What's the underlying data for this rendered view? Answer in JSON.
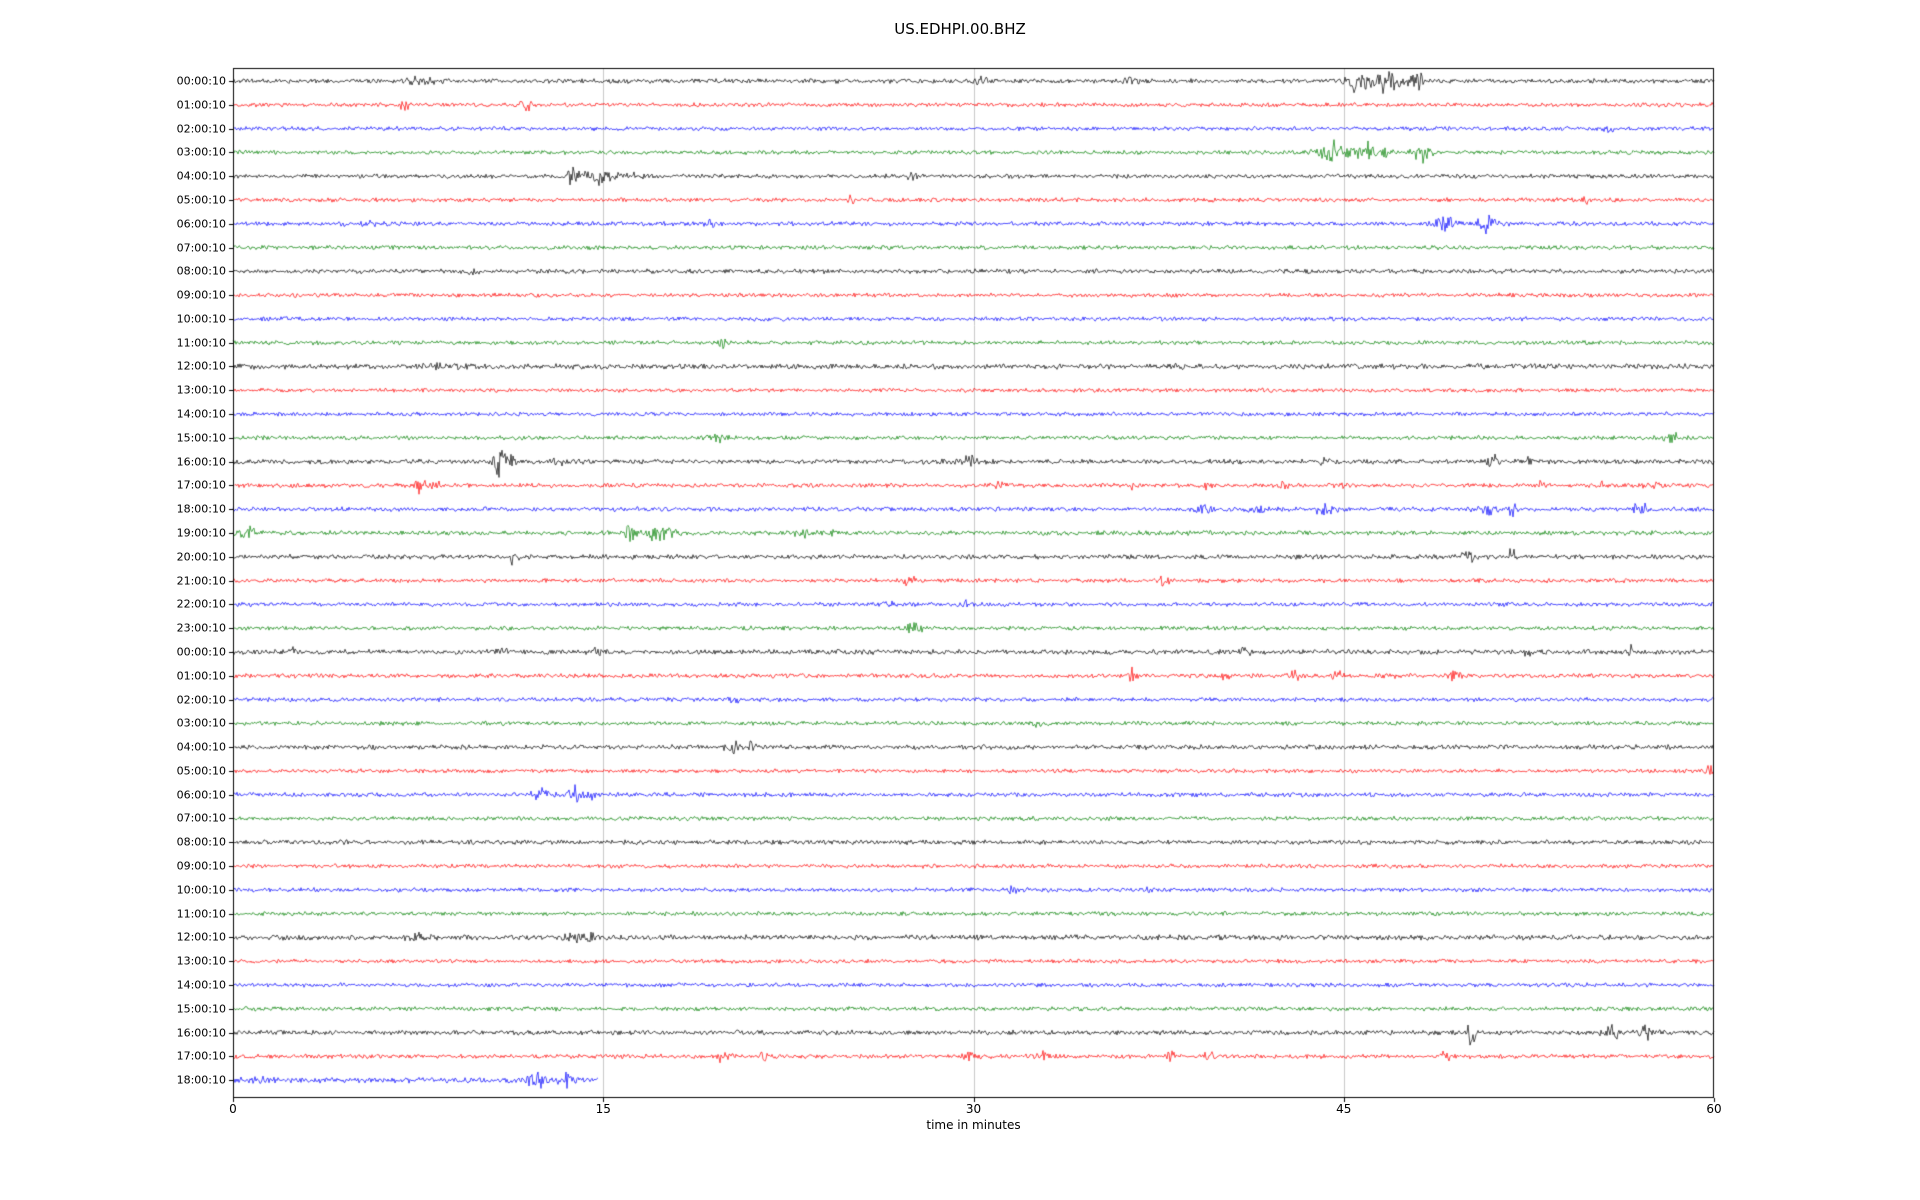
{
  "window": {
    "title": "US.EDHPI.00.BHZ"
  },
  "chart_data": {
    "type": "line",
    "subtype": "helicorder-dayplot",
    "title": "US.EDHPI.00.BHZ",
    "xlabel": "time in minutes",
    "xlim": [
      0,
      60
    ],
    "xticks": [
      0,
      15,
      30,
      45,
      60
    ],
    "grid_x": [
      15,
      30,
      45
    ],
    "grid_color": "#c8c8c8",
    "frame_color": "#000000",
    "colors": {
      "k": "#000000",
      "r": "#ff0000",
      "b": "#0000ff",
      "g": "#008000"
    },
    "color_cycle": [
      "k",
      "r",
      "b",
      "g"
    ],
    "rows": [
      {
        "label": "00:00:10",
        "color": "k",
        "extent": 60,
        "noise": 1.2,
        "events": [
          [
            7.6,
            1.2,
            2
          ],
          [
            30.3,
            0.6,
            1.5
          ],
          [
            36.4,
            0.5,
            1.2
          ],
          [
            45.5,
            1.0,
            4
          ],
          [
            46.8,
            1.2,
            5
          ],
          [
            48.0,
            0.7,
            3
          ]
        ]
      },
      {
        "label": "01:00:10",
        "color": "r",
        "extent": 60,
        "noise": 1.1,
        "events": [
          [
            6.9,
            0.35,
            4
          ],
          [
            11.9,
            0.45,
            3.5
          ]
        ]
      },
      {
        "label": "02:00:10",
        "color": "b",
        "extent": 60,
        "noise": 1.1,
        "events": [
          [
            55.7,
            0.5,
            1.5
          ]
        ]
      },
      {
        "label": "03:00:10",
        "color": "g",
        "extent": 60,
        "noise": 1.1,
        "events": [
          [
            44.5,
            1.0,
            5
          ],
          [
            46.0,
            1.3,
            4
          ],
          [
            48.3,
            0.9,
            4.5
          ]
        ]
      },
      {
        "label": "04:00:10",
        "color": "k",
        "extent": 60,
        "noise": 1.15,
        "events": [
          [
            13.7,
            0.5,
            6
          ],
          [
            14.8,
            1.2,
            3
          ],
          [
            16.0,
            0.9,
            2
          ],
          [
            27.5,
            0.5,
            1.5
          ]
        ]
      },
      {
        "label": "05:00:10",
        "color": "r",
        "extent": 60,
        "noise": 1.1,
        "events": [
          [
            25.0,
            0.5,
            2.5
          ],
          [
            54.8,
            0.4,
            2
          ]
        ]
      },
      {
        "label": "06:00:10",
        "color": "b",
        "extent": 60,
        "noise": 1.15,
        "events": [
          [
            6.0,
            2.0,
            0.8
          ],
          [
            19.3,
            0.35,
            3
          ],
          [
            49.0,
            0.9,
            3.5
          ],
          [
            50.8,
            0.7,
            5
          ]
        ]
      },
      {
        "label": "07:00:10",
        "color": "g",
        "extent": 60,
        "noise": 1.1,
        "events": []
      },
      {
        "label": "08:00:10",
        "color": "k",
        "extent": 60,
        "noise": 1.2,
        "events": [
          [
            9.7,
            0.5,
            1
          ]
        ]
      },
      {
        "label": "09:00:10",
        "color": "r",
        "extent": 60,
        "noise": 1.1,
        "events": []
      },
      {
        "label": "10:00:10",
        "color": "b",
        "extent": 60,
        "noise": 1.1,
        "events": []
      },
      {
        "label": "11:00:10",
        "color": "g",
        "extent": 60,
        "noise": 1.1,
        "events": [
          [
            19.8,
            0.3,
            2.5
          ]
        ]
      },
      {
        "label": "12:00:10",
        "color": "k",
        "extent": 60,
        "noise": 1.4,
        "events": [
          [
            8.5,
            1.5,
            0.6
          ]
        ]
      },
      {
        "label": "13:00:10",
        "color": "r",
        "extent": 60,
        "noise": 1.05,
        "events": []
      },
      {
        "label": "14:00:10",
        "color": "b",
        "extent": 60,
        "noise": 1.05,
        "events": []
      },
      {
        "label": "15:00:10",
        "color": "g",
        "extent": 60,
        "noise": 1.1,
        "events": [
          [
            19.5,
            0.9,
            2.5
          ],
          [
            58.3,
            0.7,
            2
          ]
        ]
      },
      {
        "label": "16:00:10",
        "color": "k",
        "extent": 60,
        "noise": 1.25,
        "events": [
          [
            10.8,
            0.45,
            7
          ],
          [
            11.3,
            0.3,
            4
          ],
          [
            13.2,
            0.4,
            2
          ],
          [
            29.8,
            0.9,
            2.5
          ],
          [
            44.2,
            0.4,
            2
          ],
          [
            51.0,
            0.4,
            3
          ],
          [
            52.5,
            0.3,
            1.5
          ]
        ]
      },
      {
        "label": "17:00:10",
        "color": "r",
        "extent": 60,
        "noise": 1.15,
        "events": [
          [
            7.6,
            0.5,
            4
          ],
          [
            8.2,
            0.3,
            3
          ],
          [
            31.0,
            0.5,
            1.5
          ],
          [
            36.5,
            0.4,
            1.5
          ],
          [
            39.5,
            0.5,
            1.8
          ],
          [
            42.5,
            0.5,
            1.5
          ],
          [
            45.0,
            0.4,
            1.5
          ],
          [
            53.0,
            0.4,
            1.5
          ],
          [
            55.5,
            0.4,
            1.8
          ],
          [
            57.5,
            0.5,
            1.5
          ]
        ]
      },
      {
        "label": "18:00:10",
        "color": "b",
        "extent": 60,
        "noise": 1.2,
        "events": [
          [
            39.2,
            0.9,
            2
          ],
          [
            41.5,
            0.7,
            2.5
          ],
          [
            44.3,
            0.9,
            2.5
          ],
          [
            50.8,
            0.7,
            4
          ],
          [
            51.8,
            0.5,
            3
          ],
          [
            57.0,
            0.6,
            2.5
          ]
        ]
      },
      {
        "label": "19:00:10",
        "color": "g",
        "extent": 60,
        "noise": 1.2,
        "events": [
          [
            0.6,
            0.7,
            2.5
          ],
          [
            16.1,
            0.5,
            4
          ],
          [
            17.0,
            0.9,
            3
          ],
          [
            17.8,
            0.7,
            2.5
          ],
          [
            23.0,
            0.9,
            1.5
          ],
          [
            24.3,
            0.5,
            1.5
          ]
        ]
      },
      {
        "label": "20:00:10",
        "color": "k",
        "extent": 60,
        "noise": 1.25,
        "events": [
          [
            11.3,
            0.5,
            2.5
          ],
          [
            50.0,
            0.7,
            2
          ],
          [
            51.8,
            0.3,
            3.5
          ]
        ]
      },
      {
        "label": "21:00:10",
        "color": "r",
        "extent": 60,
        "noise": 1.1,
        "events": [
          [
            27.4,
            0.5,
            2.5
          ],
          [
            37.7,
            0.4,
            2
          ]
        ]
      },
      {
        "label": "22:00:10",
        "color": "b",
        "extent": 60,
        "noise": 1.1,
        "events": [
          [
            26.6,
            0.4,
            2.5
          ],
          [
            29.6,
            0.4,
            1.8
          ]
        ]
      },
      {
        "label": "23:00:10",
        "color": "g",
        "extent": 60,
        "noise": 1.1,
        "events": [
          [
            27.6,
            0.6,
            3
          ]
        ]
      },
      {
        "label": "00:00:10",
        "color": "k",
        "extent": 60,
        "noise": 1.3,
        "events": [
          [
            2.4,
            0.4,
            1.5
          ],
          [
            11.0,
            0.7,
            2
          ],
          [
            14.7,
            0.4,
            1.5
          ],
          [
            41.0,
            0.5,
            1.5
          ],
          [
            52.5,
            0.4,
            1.5
          ],
          [
            56.6,
            0.3,
            3
          ]
        ]
      },
      {
        "label": "01:00:10",
        "color": "r",
        "extent": 60,
        "noise": 1.15,
        "events": [
          [
            36.4,
            0.35,
            3.5
          ],
          [
            40.2,
            0.4,
            1.8
          ],
          [
            43.0,
            0.5,
            2
          ],
          [
            44.8,
            0.5,
            2
          ],
          [
            47.0,
            0.5,
            2
          ],
          [
            49.5,
            0.5,
            2
          ]
        ]
      },
      {
        "label": "02:00:10",
        "color": "b",
        "extent": 60,
        "noise": 1.1,
        "events": [
          [
            20.3,
            0.4,
            1.8
          ]
        ]
      },
      {
        "label": "03:00:10",
        "color": "g",
        "extent": 60,
        "noise": 1.1,
        "events": [
          [
            32.5,
            0.5,
            1.5
          ]
        ]
      },
      {
        "label": "04:00:10",
        "color": "k",
        "extent": 60,
        "noise": 1.25,
        "events": [
          [
            20.2,
            0.7,
            2.5
          ],
          [
            21.0,
            0.4,
            2
          ],
          [
            43.7,
            0.4,
            1.5
          ]
        ]
      },
      {
        "label": "05:00:10",
        "color": "r",
        "extent": 60,
        "noise": 1.05,
        "events": [
          [
            59.8,
            0.3,
            2.5
          ]
        ]
      },
      {
        "label": "06:00:10",
        "color": "b",
        "extent": 60,
        "noise": 1.15,
        "events": [
          [
            12.5,
            0.7,
            3
          ],
          [
            13.8,
            0.35,
            6
          ],
          [
            14.4,
            0.5,
            2.5
          ]
        ]
      },
      {
        "label": "07:00:10",
        "color": "g",
        "extent": 60,
        "noise": 1.1,
        "events": []
      },
      {
        "label": "08:00:10",
        "color": "k",
        "extent": 60,
        "noise": 1.2,
        "events": []
      },
      {
        "label": "09:00:10",
        "color": "r",
        "extent": 60,
        "noise": 1.1,
        "events": []
      },
      {
        "label": "10:00:10",
        "color": "b",
        "extent": 60,
        "noise": 1.1,
        "events": [
          [
            31.6,
            0.4,
            1.8
          ],
          [
            37.2,
            0.4,
            1.5
          ]
        ]
      },
      {
        "label": "11:00:10",
        "color": "g",
        "extent": 60,
        "noise": 1.1,
        "events": []
      },
      {
        "label": "12:00:10",
        "color": "k",
        "extent": 60,
        "noise": 1.35,
        "events": [
          [
            7.5,
            1.0,
            1
          ],
          [
            13.7,
            0.7,
            2
          ],
          [
            14.5,
            0.5,
            1.5
          ]
        ]
      },
      {
        "label": "13:00:10",
        "color": "r",
        "extent": 60,
        "noise": 1.05,
        "events": []
      },
      {
        "label": "14:00:10",
        "color": "b",
        "extent": 60,
        "noise": 1.1,
        "events": []
      },
      {
        "label": "15:00:10",
        "color": "g",
        "extent": 60,
        "noise": 1.1,
        "events": []
      },
      {
        "label": "16:00:10",
        "color": "k",
        "extent": 60,
        "noise": 1.25,
        "events": [
          [
            50.2,
            0.3,
            8
          ],
          [
            55.9,
            0.7,
            2.5
          ],
          [
            57.3,
            0.7,
            2.5
          ]
        ]
      },
      {
        "label": "17:00:10",
        "color": "r",
        "extent": 60,
        "noise": 1.15,
        "events": [
          [
            19.8,
            0.5,
            2.5
          ],
          [
            21.5,
            0.2,
            6
          ],
          [
            29.8,
            0.6,
            2.5
          ],
          [
            32.8,
            0.5,
            2
          ],
          [
            38.0,
            0.6,
            2.5
          ],
          [
            39.5,
            0.4,
            2
          ],
          [
            49.2,
            0.5,
            2.5
          ]
        ]
      },
      {
        "label": "18:00:10",
        "color": "b",
        "extent": 14.8,
        "noise": 1.4,
        "events": [
          [
            1.0,
            1.5,
            1
          ],
          [
            12.3,
            0.7,
            3
          ],
          [
            13.5,
            0.5,
            2.5
          ]
        ]
      }
    ]
  }
}
